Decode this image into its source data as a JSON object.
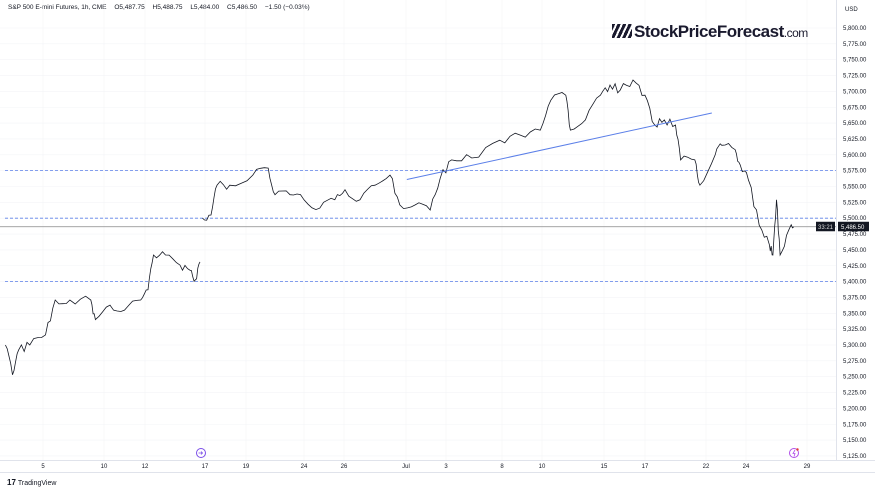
{
  "header": {
    "symbol": "S&P 500 E-mini Futures, 1h, CME",
    "open": "O5,487.75",
    "high": "H5,488.75",
    "low": "L5,484.00",
    "close": "C5,486.50",
    "change": "−1.50 (−0.03%)"
  },
  "logo": {
    "text": "StockPriceForecast",
    "suffix": ".com"
  },
  "footer": {
    "brand": "TradingView"
  },
  "colors": {
    "price": "#131722",
    "trendline": "#5b7fe8",
    "levels": "#5b7fe8",
    "axis_bg": "#ffffff",
    "last_label_bg": "#131722"
  },
  "icons": {
    "event_1": "split-arrow-circle-icon",
    "event_2": "lightning-circle-icon"
  },
  "chart_data": {
    "type": "line",
    "title": "S&P 500 E-mini Futures, 1h, CME",
    "y_unit": "USD",
    "ylim": [
      5112.5,
      5844
    ],
    "y_ticks": [
      "5,125.00",
      "5,150.00",
      "5,175.00",
      "5,200.00",
      "5,225.00",
      "5,250.00",
      "5,275.00",
      "5,300.00",
      "5,325.00",
      "5,350.00",
      "5,375.00",
      "5,400.00",
      "5,425.00",
      "5,450.00",
      "5,475.00",
      "5,500.00",
      "5,525.00",
      "5,550.00",
      "5,575.00",
      "5,600.00",
      "5,625.00",
      "5,650.00",
      "5,675.00",
      "5,700.00",
      "5,725.00",
      "5,750.00",
      "5,775.00",
      "5,800.00"
    ],
    "x_ticks": [
      {
        "label": "5",
        "date": "06-05"
      },
      {
        "label": "10",
        "date": "06-10"
      },
      {
        "label": "12",
        "date": "06-12"
      },
      {
        "label": "17",
        "date": "06-17"
      },
      {
        "label": "19",
        "date": "06-19"
      },
      {
        "label": "24",
        "date": "06-24"
      },
      {
        "label": "26",
        "date": "06-26"
      },
      {
        "label": "Jul",
        "date": "07-01"
      },
      {
        "label": "3",
        "date": "07-03"
      },
      {
        "label": "8",
        "date": "07-08"
      },
      {
        "label": "10",
        "date": "07-10"
      },
      {
        "label": "15",
        "date": "07-15"
      },
      {
        "label": "17",
        "date": "07-17"
      },
      {
        "label": "22",
        "date": "07-22"
      },
      {
        "label": "24",
        "date": "07-24"
      },
      {
        "label": "29",
        "date": "07-29"
      }
    ],
    "grid": true,
    "last_price": "5,486.50",
    "countdown": "33:21",
    "series": [
      {
        "values": [
          [
            "06-01 22",
            5300
          ],
          [
            "06-02 12",
            5253
          ],
          [
            "06-03 00",
            5292
          ],
          [
            "06-03 22",
            5300
          ],
          [
            "06-05 05",
            5316
          ],
          [
            "06-06 00",
            5371
          ],
          [
            "06-07 05",
            5371
          ],
          [
            "06-08 22",
            5371
          ],
          [
            "06-09 07",
            5340
          ],
          [
            "06-10 07",
            5363
          ],
          [
            "06-11 00",
            5355
          ],
          [
            "06-11 19",
            5371
          ],
          [
            "06-12 06",
            5387
          ],
          [
            "06-12 17",
            5442
          ],
          [
            "06-13 17",
            5442
          ],
          [
            "06-14 22",
            5426
          ],
          [
            "06-15 18",
            5418
          ],
          [
            "06-16 05",
            5403
          ],
          [
            "06-16 14",
            5431
          ],
          [
            "06-16 19",
            5500
          ],
          [
            "06-17 07",
            5505
          ],
          [
            "06-17 14",
            5552
          ],
          [
            "06-18 05",
            5552
          ],
          [
            "06-19 14",
            5568
          ],
          [
            "06-20 22",
            5579
          ],
          [
            "06-21 12",
            5537
          ],
          [
            "06-22 19",
            5537
          ],
          [
            "06-24 00",
            5529
          ],
          [
            "06-24 19",
            5516
          ],
          [
            "06-25 13",
            5529
          ],
          [
            "06-26 02",
            5545
          ],
          [
            "06-27 07",
            5529
          ],
          [
            "06-28 12",
            5552
          ],
          [
            "06-29 17",
            5568
          ],
          [
            "06-30 12",
            5521
          ],
          [
            "07-01 11",
            5521
          ],
          [
            "07-02 05",
            5513
          ],
          [
            "07-02 17",
            5563
          ],
          [
            "07-03 12",
            5592
          ],
          [
            "07-05 07",
            5595
          ],
          [
            "07-07 19",
            5623
          ],
          [
            "07-08 22",
            5631
          ],
          [
            "07-09 22",
            5639
          ],
          [
            "07-10 17",
            5686
          ],
          [
            "07-11 22",
            5694
          ],
          [
            "07-12 07",
            5639
          ],
          [
            "07-13 12",
            5655
          ],
          [
            "07-14 17",
            5694
          ],
          [
            "07-15 07",
            5710
          ],
          [
            "07-15 19",
            5702
          ],
          [
            "07-16 10",
            5718
          ],
          [
            "07-17 00",
            5694
          ],
          [
            "07-17 19",
            5647
          ],
          [
            "07-18 14",
            5655
          ],
          [
            "07-19 12",
            5647
          ],
          [
            "07-19 22",
            5592
          ],
          [
            "07-21 02",
            5592
          ],
          [
            "07-21 12",
            5552
          ],
          [
            "07-22 11",
            5600
          ],
          [
            "07-22 19",
            5615
          ],
          [
            "07-23 11",
            5608
          ],
          [
            "07-23 17",
            5584
          ],
          [
            "07-24 05",
            5560
          ],
          [
            "07-25 02",
            5489
          ],
          [
            "07-25 22",
            5458
          ],
          [
            "07-26 05",
            5442
          ],
          [
            "07-26 12",
            5529
          ],
          [
            "07-26 19",
            5442
          ],
          [
            "07-27 12",
            5481
          ],
          [
            "07-27 22",
            5486.5
          ]
        ]
      }
    ],
    "horizontal_levels": [
      5575,
      5500,
      5400
    ],
    "trendline": [
      [
        "07-01 01",
        5561
      ],
      [
        "07-22 07",
        5666
      ]
    ]
  }
}
